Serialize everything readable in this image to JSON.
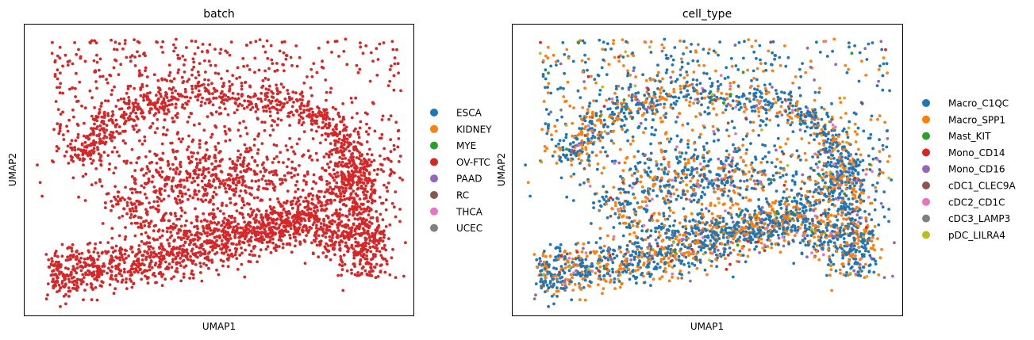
{
  "chart_data": [
    {
      "type": "scatter",
      "title": "batch",
      "xlabel": "UMAP1",
      "ylabel": "UMAP2",
      "grid": false,
      "legend_position": "right",
      "x_ticks_shown": false,
      "y_ticks_shown": false,
      "categories": [
        "ESCA",
        "KIDNEY",
        "MYE",
        "OV-FTC",
        "PAAD",
        "RC",
        "THCA",
        "UCEC"
      ],
      "colors": [
        "#1f77b4",
        "#ff7f0e",
        "#2ca02c",
        "#d62728",
        "#9467bd",
        "#8c564b",
        "#e377c2",
        "#7f7f7f"
      ],
      "plotted_categories": [
        "OV-FTC"
      ]
    },
    {
      "type": "scatter",
      "title": "cell_type",
      "xlabel": "UMAP1",
      "ylabel": "UMAP2",
      "grid": false,
      "legend_position": "right",
      "x_ticks_shown": false,
      "y_ticks_shown": false,
      "categories": [
        "Macro_C1QC",
        "Macro_SPP1",
        "Mast_KIT",
        "Mono_CD14",
        "Mono_CD16",
        "cDC1_CLEC9A",
        "cDC2_CD1C",
        "cDC3_LAMP3",
        "pDC_LILRA4"
      ],
      "colors": [
        "#1f77b4",
        "#ff7f0e",
        "#2ca02c",
        "#d62728",
        "#9467bd",
        "#8c564b",
        "#e377c2",
        "#7f7f7f",
        "#bcbd22"
      ],
      "category_weights": [
        0.55,
        0.33,
        0.012,
        0.015,
        0.03,
        0.012,
        0.025,
        0.015,
        0.011
      ]
    }
  ]
}
